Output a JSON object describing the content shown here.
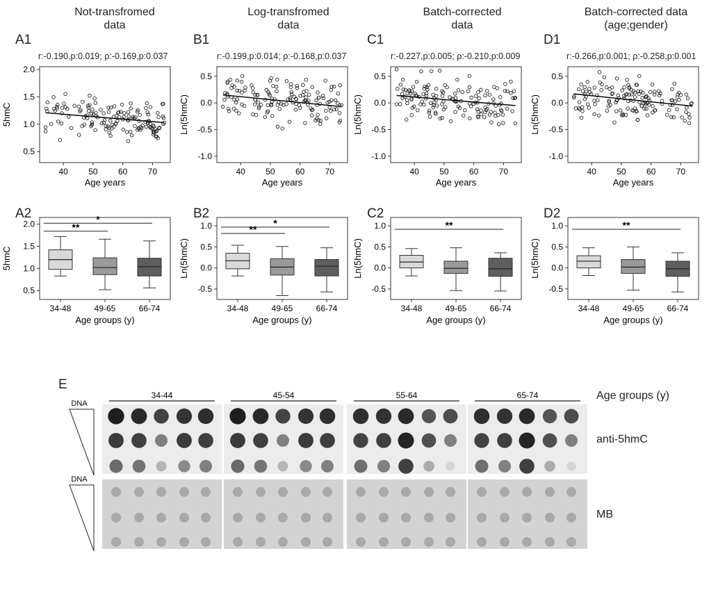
{
  "columns": [
    {
      "title_line1": "Not-transfromed",
      "title_line2": "data",
      "label_top": "A1",
      "label_box": "A2",
      "stats": "r:-0.190,p:0.019; ρ:-0.169,p:0.037",
      "ylabel": "5hmC"
    },
    {
      "title_line1": "Log-transfromed",
      "title_line2": "data",
      "label_top": "B1",
      "label_box": "B2",
      "stats": "r:-0.199,p:0.014; ρ:-0.168,p:0.037",
      "ylabel": "Ln(5hmC)"
    },
    {
      "title_line1": "Batch-corrected",
      "title_line2": "data",
      "label_top": "C1",
      "label_box": "C2",
      "stats": "r:-0.227,p:0.005; ρ:-0.210,p:0.009",
      "ylabel": "Ln(5hmC)"
    },
    {
      "title_line1": "Batch-corrected data",
      "title_line2": "(age;gender)",
      "label_top": "D1",
      "label_box": "D2",
      "stats": "r:-0.266,p:0.001; ρ:-0.258,p:0.001",
      "ylabel": "Ln(5hmC)"
    }
  ],
  "chart_data": [
    {
      "id": "A1",
      "type": "scatter",
      "xlabel": "Age years",
      "ylabel": "5hmC",
      "xticks": [
        40,
        50,
        60,
        70
      ],
      "yticks": [
        "0.5",
        "1.0",
        "1.5",
        "2.0"
      ],
      "xlim": [
        32,
        76
      ],
      "ylim": [
        0.3,
        2.05
      ],
      "trend": {
        "x": [
          34,
          74
        ],
        "y": [
          1.21,
          1.03
        ]
      },
      "seed": 11,
      "center": 1.12,
      "spread": 0.52
    },
    {
      "id": "B1",
      "type": "scatter",
      "xlabel": "Age years",
      "ylabel": "Ln(5hmC)",
      "xticks": [
        40,
        50,
        60,
        70
      ],
      "yticks": [
        "-1.0",
        "-0.5",
        "0.0",
        "0.5"
      ],
      "xlim": [
        32,
        76
      ],
      "ylim": [
        -1.12,
        0.68
      ],
      "trend": {
        "x": [
          34,
          74
        ],
        "y": [
          0.15,
          -0.07
        ]
      },
      "seed": 23,
      "center": 0.04,
      "spread": 0.55
    },
    {
      "id": "C1",
      "type": "scatter",
      "xlabel": "Age years",
      "ylabel": "Ln(5hmC)",
      "xticks": [
        40,
        50,
        60,
        70
      ],
      "yticks": [
        "-1.0",
        "-0.5",
        "0.0",
        "0.5"
      ],
      "xlim": [
        32,
        76
      ],
      "ylim": [
        -1.12,
        0.68
      ],
      "trend": {
        "x": [
          34,
          74
        ],
        "y": [
          0.14,
          -0.05
        ]
      },
      "seed": 37,
      "center": 0.05,
      "spread": 0.55
    },
    {
      "id": "D1",
      "type": "scatter",
      "xlabel": "Age years",
      "ylabel": "Ln(5hmC)",
      "xticks": [
        40,
        50,
        60,
        70
      ],
      "yticks": [
        "-1.0",
        "-0.5",
        "0.0",
        "0.5"
      ],
      "xlim": [
        32,
        76
      ],
      "ylim": [
        -1.12,
        0.68
      ],
      "trend": {
        "x": [
          34,
          74
        ],
        "y": [
          0.17,
          -0.06
        ]
      },
      "seed": 53,
      "center": 0.05,
      "spread": 0.55
    },
    {
      "id": "A2",
      "type": "box",
      "xlabel": "Age groups (y)",
      "ylabel": "5hmC",
      "categories": [
        "34-48",
        "49-65",
        "66-74"
      ],
      "yticks": [
        "0.5",
        "1.0",
        "1.5",
        "2.0"
      ],
      "ylim": [
        0.3,
        2.15
      ],
      "boxes": [
        {
          "min": 0.83,
          "q1": 0.98,
          "median": 1.2,
          "q3": 1.42,
          "max": 1.72
        },
        {
          "min": 0.52,
          "q1": 0.86,
          "median": 1.02,
          "q3": 1.24,
          "max": 1.66
        },
        {
          "min": 0.56,
          "q1": 0.83,
          "median": 1.04,
          "q3": 1.23,
          "max": 1.62
        }
      ],
      "brackets": [
        {
          "from": 0,
          "to": 1,
          "y": 1.84,
          "label": "**"
        },
        {
          "from": 0,
          "to": 2,
          "y": 2.02,
          "label": "*"
        }
      ]
    },
    {
      "id": "B2",
      "type": "box",
      "xlabel": "Age groups (y)",
      "ylabel": "Ln(5hmC)",
      "categories": [
        "34-48",
        "49-65",
        "66-74"
      ],
      "yticks": [
        "-0.5",
        "0.0",
        "0.5",
        "1.0"
      ],
      "ylim": [
        -0.75,
        1.2
      ],
      "boxes": [
        {
          "min": -0.19,
          "q1": -0.02,
          "median": 0.17,
          "q3": 0.35,
          "max": 0.54
        },
        {
          "min": -0.66,
          "q1": -0.17,
          "median": 0.02,
          "q3": 0.22,
          "max": 0.51
        },
        {
          "min": -0.57,
          "q1": -0.19,
          "median": 0.04,
          "q3": 0.2,
          "max": 0.48
        }
      ],
      "brackets": [
        {
          "from": 0,
          "to": 1,
          "y": 0.82,
          "label": "**"
        },
        {
          "from": 0,
          "to": 2,
          "y": 0.97,
          "label": "*"
        }
      ]
    },
    {
      "id": "C2",
      "type": "box",
      "xlabel": "Age groups (y)",
      "ylabel": "Ln(5hmC)",
      "categories": [
        "34-48",
        "49-65",
        "66-74"
      ],
      "yticks": [
        "-0.5",
        "0.0",
        "0.5",
        "1.0"
      ],
      "ylim": [
        -0.75,
        1.2
      ],
      "boxes": [
        {
          "min": -0.19,
          "q1": 0.0,
          "median": 0.14,
          "q3": 0.3,
          "max": 0.46
        },
        {
          "min": -0.54,
          "q1": -0.13,
          "median": -0.01,
          "q3": 0.16,
          "max": 0.48
        },
        {
          "min": -0.55,
          "q1": -0.2,
          "median": -0.02,
          "q3": 0.23,
          "max": 0.36
        }
      ],
      "brackets": [
        {
          "from": 0,
          "to": 2,
          "y": 0.92,
          "label": "**"
        }
      ]
    },
    {
      "id": "D2",
      "type": "box",
      "xlabel": "Age groups (y)",
      "ylabel": "Ln(5hmC)",
      "categories": [
        "34-48",
        "49-65",
        "66-74"
      ],
      "yticks": [
        "-0.5",
        "0.0",
        "0.5",
        "1.0"
      ],
      "ylim": [
        -0.75,
        1.2
      ],
      "boxes": [
        {
          "min": -0.18,
          "q1": 0.0,
          "median": 0.16,
          "q3": 0.29,
          "max": 0.48
        },
        {
          "min": -0.53,
          "q1": -0.13,
          "median": 0.02,
          "q3": 0.2,
          "max": 0.5
        },
        {
          "min": -0.57,
          "q1": -0.2,
          "median": -0.02,
          "q3": 0.16,
          "max": 0.36
        }
      ],
      "brackets": [
        {
          "from": 0,
          "to": 2,
          "y": 0.92,
          "label": "**"
        }
      ]
    }
  ],
  "blot": {
    "label": "E",
    "groups": [
      "34-44",
      "45-54",
      "55-64",
      "65-74"
    ],
    "age_groups_label": "Age groups (y)",
    "dna_label": "DNA",
    "antibody_label": "anti-5hmC",
    "stain_label": "MB",
    "top_intensity": [
      [
        [
          0.95,
          0.9,
          0.78,
          0.85,
          0.88
        ],
        [
          0.88,
          0.86,
          0.9,
          0.7,
          0.74
        ]
      ],
      [
        [
          0.82,
          0.8,
          0.5,
          0.82,
          0.8
        ],
        [
          0.78,
          0.8,
          0.92,
          0.72,
          0.5
        ]
      ],
      [
        [
          0.6,
          0.55,
          0.25,
          0.45,
          0.5
        ],
        [
          0.58,
          0.5,
          0.8,
          0.3,
          0.1
        ]
      ],
      [
        [
          0.88,
          0.84,
          0.78,
          0.55,
          0.85
        ],
        [
          0.9,
          0.78,
          0.76,
          0.7,
          0.8
        ]
      ],
      [
        [
          0.74,
          0.82,
          0.48,
          0.5,
          0.5
        ],
        [
          0.7,
          0.5,
          0.62,
          0.5,
          0.6
        ]
      ],
      [
        [
          0.3,
          0.5,
          0.12,
          0.1,
          0.35
        ],
        [
          0.45,
          0.1,
          0.1,
          0.08,
          0.06
        ]
      ]
    ]
  }
}
